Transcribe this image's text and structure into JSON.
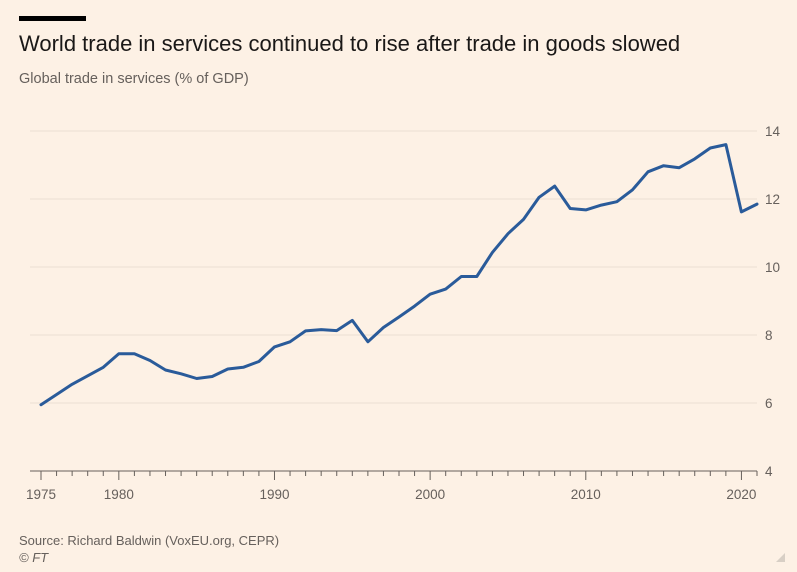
{
  "header": {
    "title": "World trade in services continued to rise after trade in goods slowed",
    "subtitle": "Global trade in services (% of GDP)"
  },
  "footer": {
    "source": "Source: Richard Baldwin (VoxEU.org, CEPR)",
    "copyright": "© FT"
  },
  "colors": {
    "background": "#fdf1e5",
    "line": "#2a5b9a",
    "grid": "#ecdfd2",
    "axis": "#66605c"
  },
  "chart_data": {
    "type": "line",
    "title": "World trade in services continued to rise after trade in goods slowed",
    "subtitle": "Global trade in services (% of GDP)",
    "xlabel": "",
    "ylabel": "",
    "xlim": [
      1975,
      2021
    ],
    "ylim": [
      4,
      14
    ],
    "x_ticks": [
      1975,
      1980,
      1990,
      2000,
      2010,
      2020
    ],
    "y_ticks": [
      4,
      6,
      8,
      10,
      12,
      14
    ],
    "y_axis_side": "right",
    "grid": true,
    "series": [
      {
        "name": "",
        "x": [
          1975,
          1976,
          1977,
          1978,
          1979,
          1980,
          1981,
          1982,
          1983,
          1984,
          1985,
          1986,
          1987,
          1988,
          1989,
          1990,
          1991,
          1992,
          1993,
          1994,
          1995,
          1996,
          1997,
          1998,
          1999,
          2000,
          2001,
          2002,
          2003,
          2004,
          2005,
          2006,
          2007,
          2008,
          2009,
          2010,
          2011,
          2012,
          2013,
          2014,
          2015,
          2016,
          2017,
          2018,
          2019,
          2020,
          2021
        ],
        "values": [
          5.95,
          6.25,
          6.55,
          6.8,
          7.05,
          7.45,
          7.45,
          7.25,
          6.97,
          6.86,
          6.72,
          6.78,
          7.0,
          7.05,
          7.22,
          7.65,
          7.8,
          8.12,
          8.16,
          8.13,
          8.43,
          7.8,
          8.22,
          8.53,
          8.85,
          9.2,
          9.35,
          9.72,
          9.72,
          10.43,
          10.98,
          11.4,
          12.05,
          12.38,
          11.72,
          11.68,
          11.82,
          11.92,
          12.27,
          12.8,
          12.98,
          12.92,
          13.18,
          13.5,
          13.6,
          11.62,
          11.85
        ]
      }
    ]
  }
}
